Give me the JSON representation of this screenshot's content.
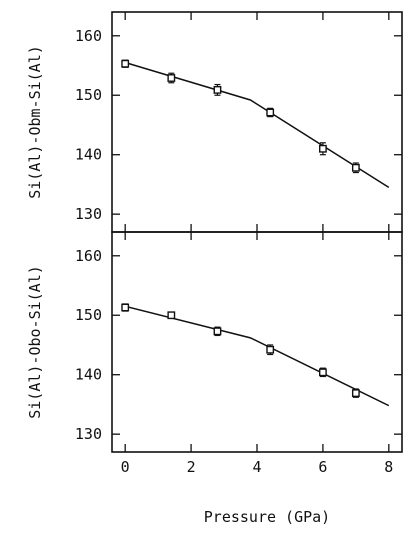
{
  "chart_data": [
    {
      "type": "scatter",
      "title": "",
      "ylabel": "Si(Al)-Obm-Si(Al)",
      "xlabel": "",
      "xlim": [
        -0.4,
        8.4
      ],
      "ylim": [
        127,
        164
      ],
      "yticks": [
        130,
        140,
        150,
        160
      ],
      "xticks": [
        0,
        2,
        4,
        6,
        8
      ],
      "grid": false,
      "legend": "none",
      "series": [
        {
          "points": [
            {
              "x": 0.0,
              "y": 155.3,
              "err": 0.6
            },
            {
              "x": 1.4,
              "y": 152.9,
              "err": 0.8
            },
            {
              "x": 2.8,
              "y": 150.9,
              "err": 0.9
            },
            {
              "x": 4.4,
              "y": 147.1,
              "err": 0.7
            },
            {
              "x": 6.0,
              "y": 141.0,
              "err": 1.0
            },
            {
              "x": 7.0,
              "y": 137.8,
              "err": 0.8
            }
          ],
          "fit_line": [
            {
              "x": 0.0,
              "y": 155.5
            },
            {
              "x": 3.8,
              "y": 149.2
            },
            {
              "x": 8.0,
              "y": 134.5
            }
          ]
        }
      ]
    },
    {
      "type": "scatter",
      "title": "",
      "ylabel": "Si(Al)-Obo-Si(Al)",
      "xlabel": "Pressure (GPa)",
      "xlim": [
        -0.4,
        8.4
      ],
      "ylim": [
        127,
        164
      ],
      "yticks": [
        130,
        140,
        150,
        160
      ],
      "xticks": [
        0,
        2,
        4,
        6,
        8
      ],
      "grid": false,
      "legend": "none",
      "series": [
        {
          "points": [
            {
              "x": 0.0,
              "y": 151.3,
              "err": 0.6
            },
            {
              "x": 1.4,
              "y": 150.0,
              "err": 0.4
            },
            {
              "x": 2.8,
              "y": 147.3,
              "err": 0.7
            },
            {
              "x": 4.4,
              "y": 144.2,
              "err": 0.8
            },
            {
              "x": 6.0,
              "y": 140.4,
              "err": 0.7
            },
            {
              "x": 7.0,
              "y": 136.9,
              "err": 0.7
            }
          ],
          "fit_line": [
            {
              "x": 0.0,
              "y": 151.5
            },
            {
              "x": 3.8,
              "y": 146.2
            },
            {
              "x": 8.0,
              "y": 134.8
            }
          ]
        }
      ]
    }
  ]
}
